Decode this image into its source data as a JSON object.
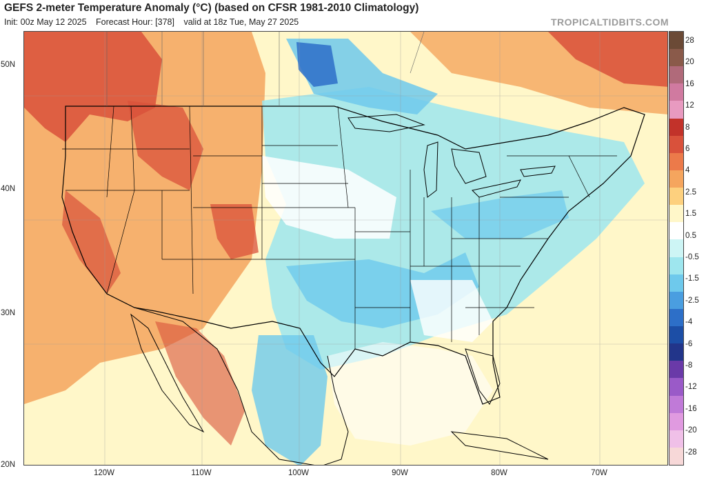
{
  "header": {
    "title": "GEFS 2-meter Temperature Anomaly (°C) (based on CFSR 1981-2010 Climatology)",
    "init": "Init: 00z May 12 2025",
    "forecast_hour": "Forecast Hour: [378]",
    "valid": "valid at 18z Tue, May 27 2025",
    "brand": "TROPICALTIDBITS.COM"
  },
  "axes": {
    "lat_labels": [
      "50N",
      "40N",
      "30N",
      "20N"
    ],
    "lon_labels": [
      "120W",
      "110W",
      "100W",
      "90W",
      "80W",
      "70W"
    ]
  },
  "colorbar": {
    "labels": [
      "28",
      "20",
      "16",
      "12",
      "8",
      "6",
      "4",
      "2.5",
      "1.5",
      "0.5",
      "-0.5",
      "-1.5",
      "-2.5",
      "-4",
      "-6",
      "-8",
      "-12",
      "-16",
      "-20",
      "-28"
    ],
    "colors": [
      "#6b4a36",
      "#8a5a4a",
      "#b06a7a",
      "#d07aa0",
      "#e89ac0",
      "#c2322a",
      "#d9513b",
      "#ec7a4a",
      "#f5a55e",
      "#fdd07e",
      "#fff7c9",
      "#ffffff",
      "#cdf5f5",
      "#9ee6ee",
      "#6ec9ec",
      "#4a9ee0",
      "#2d6fc8",
      "#1c4ea6",
      "#22358a",
      "#6a3aa8",
      "#9a5ac8",
      "#c07ad8",
      "#e09ae0",
      "#f0c0e8",
      "#f7d8d8"
    ]
  }
}
